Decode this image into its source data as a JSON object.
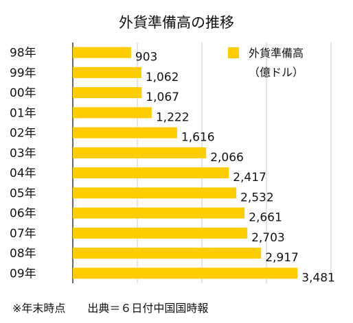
{
  "chart_data": {
    "type": "bar",
    "orientation": "horizontal",
    "title": "外貨準備高の推移",
    "categories": [
      "98年",
      "99年",
      "00年",
      "01年",
      "02年",
      "03年",
      "04年",
      "05年",
      "06年",
      "07年",
      "08年",
      "09年"
    ],
    "series": [
      {
        "name": "外貨準備高",
        "unit": "（億ドル）",
        "color": "#ffcc00",
        "values": [
          903,
          1062,
          1067,
          1222,
          1616,
          2066,
          2417,
          2532,
          2661,
          2703,
          2917,
          3481
        ],
        "labels": [
          "903",
          "1,062",
          "1,067",
          "1,222",
          "1,616",
          "2,066",
          "2,417",
          "2,532",
          "2,661",
          "2,703",
          "2,917",
          "3,481"
        ]
      }
    ],
    "xlim": [
      0,
      4000
    ],
    "grid": true,
    "legend_position": "top-right"
  },
  "footnote": "※年末時点　　出典＝６日付中国国時報"
}
